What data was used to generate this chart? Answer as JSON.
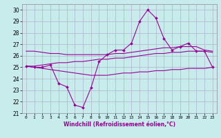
{
  "xlabel": "Windchill (Refroidissement éolien,°C)",
  "background_color": "#c8ecec",
  "grid_color": "#b0b0cc",
  "line_color": "#990099",
  "hours": [
    0,
    1,
    2,
    3,
    4,
    5,
    6,
    7,
    8,
    9,
    10,
    11,
    12,
    13,
    14,
    15,
    16,
    17,
    18,
    19,
    20,
    21,
    22,
    23
  ],
  "main_line": [
    25.1,
    25.0,
    25.0,
    25.2,
    23.6,
    23.3,
    21.7,
    21.5,
    23.2,
    25.5,
    26.1,
    26.5,
    26.5,
    27.1,
    29.0,
    30.0,
    29.3,
    27.5,
    26.5,
    26.8,
    27.1,
    26.4,
    26.4,
    25.0
  ],
  "upper_line": [
    26.4,
    26.4,
    26.3,
    26.2,
    26.2,
    26.1,
    26.1,
    26.1,
    26.1,
    26.1,
    26.1,
    26.2,
    26.2,
    26.3,
    26.4,
    26.5,
    26.6,
    26.7,
    26.7,
    26.8,
    26.8,
    26.8,
    26.5,
    26.4
  ],
  "mid_line": [
    25.1,
    25.1,
    25.2,
    25.3,
    25.4,
    25.4,
    25.5,
    25.5,
    25.6,
    25.7,
    25.7,
    25.8,
    25.8,
    25.9,
    26.0,
    26.1,
    26.2,
    26.2,
    26.3,
    26.3,
    26.4,
    26.4,
    26.4,
    26.3
  ],
  "lower_line": [
    25.1,
    25.0,
    24.9,
    24.8,
    24.7,
    24.6,
    24.5,
    24.4,
    24.3,
    24.3,
    24.3,
    24.4,
    24.5,
    24.5,
    24.6,
    24.6,
    24.7,
    24.7,
    24.8,
    24.8,
    24.9,
    24.9,
    24.9,
    25.0
  ],
  "yticks": [
    21,
    22,
    23,
    24,
    25,
    26,
    27,
    28,
    29,
    30
  ],
  "xticks": [
    0,
    1,
    2,
    3,
    4,
    5,
    6,
    7,
    8,
    9,
    10,
    11,
    12,
    13,
    14,
    15,
    16,
    17,
    18,
    19,
    20,
    21,
    22,
    23
  ]
}
